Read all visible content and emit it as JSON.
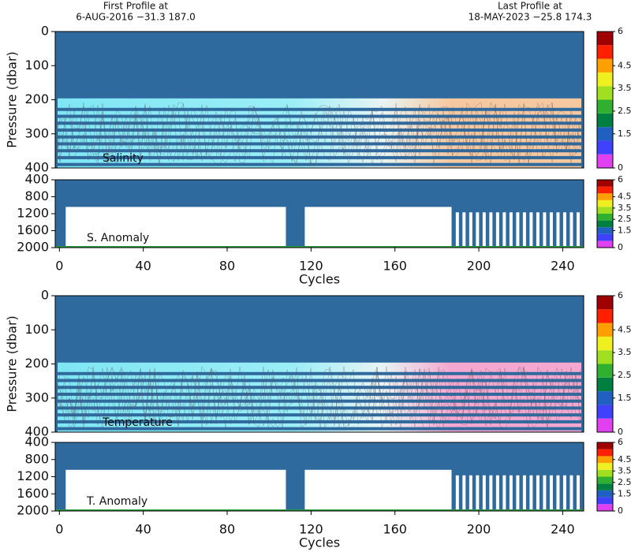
{
  "header": {
    "first_label": "First Profile at",
    "first_info": "6-AUG-2016   −31.3 187.0",
    "last_label": "Last Profile at",
    "last_info": "18-MAY-2023   −25.8 174.3"
  },
  "chart_data": [
    {
      "type": "section",
      "label": "Salinity",
      "ylabel": "Pressure (dbar)",
      "ylim": [
        0,
        400
      ],
      "y_inverted": true,
      "yticks": [
        0,
        100,
        200,
        300,
        400
      ],
      "xlim": [
        -2,
        250
      ],
      "colorbar": {
        "lim": [
          0,
          6
        ],
        "ticks": [
          0,
          1.5,
          2.5,
          3.5,
          4.5,
          6
        ],
        "colors": [
          "#e040f0",
          "#4040ff",
          "#2060c0",
          "#008040",
          "#30b030",
          "#a0e020",
          "#f0f020",
          "#ffa000",
          "#ff2000",
          "#a00000"
        ]
      }
    },
    {
      "type": "anomaly",
      "label": "S. Anomaly",
      "xlabel": "Cycles",
      "ylim": [
        400,
        2000
      ],
      "y_inverted": true,
      "yticks": [
        400,
        800,
        1200,
        1600,
        2000
      ],
      "xlim": [
        -2,
        250
      ],
      "xticks": [
        0,
        40,
        80,
        120,
        160,
        200,
        240
      ],
      "colorbar": {
        "lim": [
          0,
          6
        ],
        "ticks": [
          0,
          1.5,
          2.5,
          3.5,
          4.5,
          6
        ],
        "colors": [
          "#e040f0",
          "#4040ff",
          "#2060c0",
          "#008040",
          "#30b030",
          "#a0e020",
          "#f0f020",
          "#ffa000",
          "#ff2000",
          "#a00000"
        ]
      }
    },
    {
      "type": "section",
      "label": "Temperature",
      "ylabel": "Pressure (dbar)",
      "ylim": [
        0,
        400
      ],
      "y_inverted": true,
      "yticks": [
        0,
        100,
        200,
        300,
        400
      ],
      "xlim": [
        -2,
        250
      ],
      "colorbar": {
        "lim": [
          0,
          6
        ],
        "ticks": [
          0,
          1.5,
          2.5,
          3.5,
          4.5,
          6
        ],
        "colors": [
          "#e040f0",
          "#4040ff",
          "#2060c0",
          "#008040",
          "#30b030",
          "#a0e020",
          "#f0f020",
          "#ffa000",
          "#ff2000",
          "#a00000"
        ]
      }
    },
    {
      "type": "anomaly",
      "label": "T. Anomaly",
      "xlabel": "Cycles",
      "ylim": [
        400,
        2000
      ],
      "y_inverted": true,
      "yticks": [
        400,
        800,
        1200,
        1600,
        2000
      ],
      "xlim": [
        -2,
        250
      ],
      "xticks": [
        0,
        40,
        80,
        120,
        160,
        200,
        240
      ],
      "colorbar": {
        "lim": [
          0,
          6
        ],
        "ticks": [
          0,
          1.5,
          2.5,
          3.5,
          4.5,
          6
        ],
        "colors": [
          "#e040f0",
          "#4040ff",
          "#2060c0",
          "#008040",
          "#30b030",
          "#a0e020",
          "#f0f020",
          "#ffa000",
          "#ff2000",
          "#a00000"
        ]
      }
    }
  ]
}
